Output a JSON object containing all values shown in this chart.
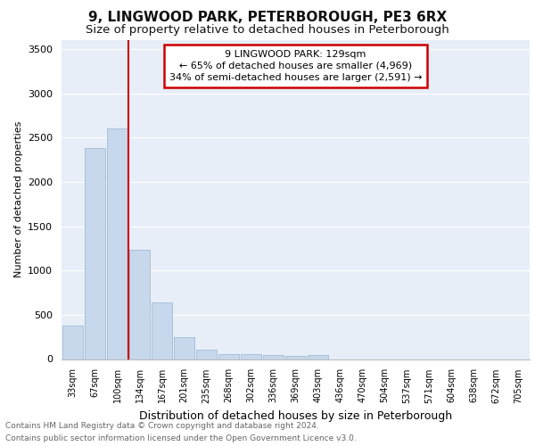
{
  "title1": "9, LINGWOOD PARK, PETERBOROUGH, PE3 6RX",
  "title2": "Size of property relative to detached houses in Peterborough",
  "xlabel": "Distribution of detached houses by size in Peterborough",
  "ylabel": "Number of detached properties",
  "footnote1": "Contains HM Land Registry data © Crown copyright and database right 2024.",
  "footnote2": "Contains public sector information licensed under the Open Government Licence v3.0.",
  "categories": [
    "33sqm",
    "67sqm",
    "100sqm",
    "134sqm",
    "167sqm",
    "201sqm",
    "235sqm",
    "268sqm",
    "302sqm",
    "336sqm",
    "369sqm",
    "403sqm",
    "436sqm",
    "470sqm",
    "504sqm",
    "537sqm",
    "571sqm",
    "604sqm",
    "638sqm",
    "672sqm",
    "705sqm"
  ],
  "values": [
    375,
    2380,
    2600,
    1230,
    640,
    250,
    110,
    60,
    55,
    50,
    35,
    45,
    0,
    0,
    0,
    0,
    0,
    0,
    0,
    0,
    0
  ],
  "bar_color": "#c8d8ec",
  "bar_edge_color": "#a0bcd4",
  "red_line_index": 3,
  "annotation_title": "9 LINGWOOD PARK: 129sqm",
  "annotation_line1": "← 65% of detached houses are smaller (4,969)",
  "annotation_line2": "34% of semi-detached houses are larger (2,591) →",
  "annotation_box_color": "#ffffff",
  "annotation_border_color": "#cc0000",
  "red_line_color": "#cc0000",
  "ylim": [
    0,
    3600
  ],
  "yticks": [
    0,
    500,
    1000,
    1500,
    2000,
    2500,
    3000,
    3500
  ],
  "bg_color": "#e8eef8",
  "grid_color": "#ffffff",
  "title1_fontsize": 11,
  "title2_fontsize": 9.5,
  "footnote_fontsize": 6.5,
  "ylabel_fontsize": 8,
  "xlabel_fontsize": 9
}
